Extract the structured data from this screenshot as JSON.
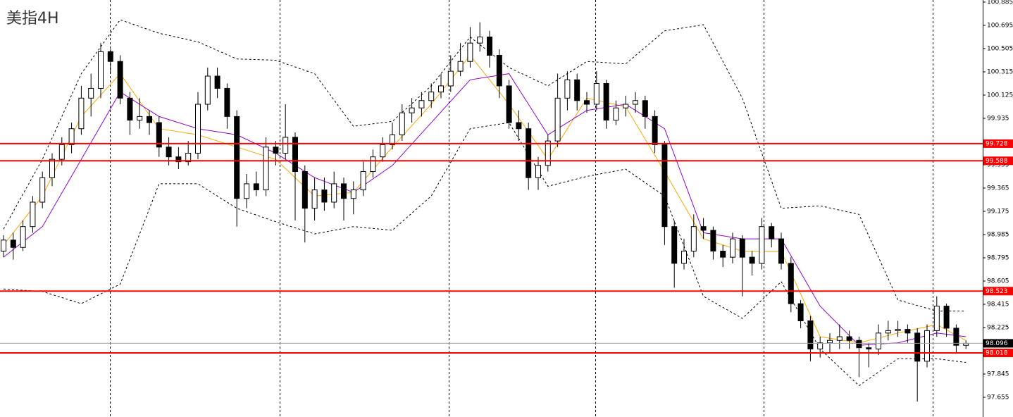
{
  "chart_data": {
    "type": "candlestick",
    "title": "美指4H",
    "ylim": [
      97.494,
      100.902
    ],
    "yticks": [
      100.885,
      100.695,
      100.505,
      100.315,
      100.125,
      99.935,
      99.555,
      99.365,
      99.175,
      98.985,
      98.795,
      98.605,
      98.415,
      98.225,
      97.845,
      97.655
    ],
    "grid": false,
    "up_color": "#ffffff",
    "down_color": "#000000",
    "ohlc": [
      [
        98.85,
        98.98,
        98.8,
        98.94
      ],
      [
        98.94,
        99.0,
        98.78,
        98.88
      ],
      [
        98.88,
        99.1,
        98.85,
        99.05
      ],
      [
        99.05,
        99.3,
        99.0,
        99.25
      ],
      [
        99.25,
        99.5,
        99.2,
        99.45
      ],
      [
        99.45,
        99.65,
        99.38,
        99.6
      ],
      [
        99.6,
        99.78,
        99.55,
        99.72
      ],
      [
        99.72,
        99.9,
        99.65,
        99.85
      ],
      [
        99.85,
        100.2,
        99.8,
        100.1
      ],
      [
        100.1,
        100.3,
        99.95,
        100.18
      ],
      [
        100.18,
        100.55,
        100.1,
        100.48
      ],
      [
        100.48,
        100.5,
        100.3,
        100.4
      ],
      [
        100.4,
        100.45,
        100.05,
        100.1
      ],
      [
        100.1,
        100.15,
        99.8,
        99.92
      ],
      [
        99.92,
        100.1,
        99.85,
        99.95
      ],
      [
        99.95,
        100.0,
        99.8,
        99.9
      ],
      [
        99.9,
        99.95,
        99.62,
        99.7
      ],
      [
        99.7,
        99.78,
        99.55,
        99.62
      ],
      [
        99.62,
        99.7,
        99.52,
        99.58
      ],
      [
        99.58,
        99.75,
        99.55,
        99.65
      ],
      [
        99.65,
        100.15,
        99.6,
        100.05
      ],
      [
        100.05,
        100.35,
        100.0,
        100.28
      ],
      [
        100.28,
        100.35,
        100.1,
        100.18
      ],
      [
        100.18,
        100.22,
        99.85,
        99.95
      ],
      [
        99.95,
        100.0,
        99.05,
        99.28
      ],
      [
        99.28,
        99.48,
        99.2,
        99.4
      ],
      [
        99.4,
        99.5,
        99.3,
        99.35
      ],
      [
        99.35,
        99.78,
        99.3,
        99.7
      ],
      [
        99.7,
        99.75,
        99.55,
        99.65
      ],
      [
        99.65,
        100.05,
        99.6,
        99.78
      ],
      [
        99.78,
        99.82,
        99.1,
        99.5
      ],
      [
        99.5,
        99.55,
        98.92,
        99.2
      ],
      [
        99.2,
        99.45,
        99.1,
        99.35
      ],
      [
        99.35,
        99.45,
        99.18,
        99.25
      ],
      [
        99.25,
        99.5,
        99.2,
        99.4
      ],
      [
        99.4,
        99.45,
        99.1,
        99.28
      ],
      [
        99.28,
        99.42,
        99.15,
        99.35
      ],
      [
        99.35,
        99.58,
        99.3,
        99.5
      ],
      [
        99.5,
        99.68,
        99.45,
        99.62
      ],
      [
        99.62,
        99.78,
        99.58,
        99.72
      ],
      [
        99.72,
        99.9,
        99.68,
        99.8
      ],
      [
        99.8,
        100.05,
        99.75,
        99.98
      ],
      [
        99.98,
        100.1,
        99.9,
        100.02
      ],
      [
        100.02,
        100.15,
        99.95,
        100.08
      ],
      [
        100.08,
        100.22,
        100.02,
        100.15
      ],
      [
        100.15,
        100.3,
        100.1,
        100.2
      ],
      [
        100.2,
        100.45,
        100.15,
        100.32
      ],
      [
        100.32,
        100.55,
        100.28,
        100.4
      ],
      [
        100.4,
        100.68,
        100.35,
        100.55
      ],
      [
        100.55,
        100.72,
        100.48,
        100.6
      ],
      [
        100.6,
        100.65,
        100.35,
        100.45
      ],
      [
        100.45,
        100.5,
        100.1,
        100.2
      ],
      [
        100.2,
        100.25,
        99.85,
        99.9
      ],
      [
        99.9,
        100.0,
        99.75,
        99.85
      ],
      [
        99.85,
        99.9,
        99.35,
        99.45
      ],
      [
        99.45,
        99.62,
        99.35,
        99.55
      ],
      [
        99.55,
        99.8,
        99.5,
        99.75
      ],
      [
        99.75,
        100.3,
        99.7,
        100.1
      ],
      [
        100.1,
        100.32,
        100.0,
        100.25
      ],
      [
        100.25,
        100.3,
        100.0,
        100.08
      ],
      [
        100.08,
        100.15,
        99.98,
        100.05
      ],
      [
        100.05,
        100.32,
        100.0,
        100.22
      ],
      [
        100.22,
        100.25,
        99.85,
        99.92
      ],
      [
        99.92,
        100.08,
        99.88,
        100.02
      ],
      [
        100.02,
        100.12,
        99.95,
        100.05
      ],
      [
        100.05,
        100.15,
        99.98,
        100.08
      ],
      [
        100.08,
        100.12,
        99.85,
        99.95
      ],
      [
        99.95,
        100.0,
        99.65,
        99.72
      ],
      [
        99.72,
        99.75,
        98.9,
        99.05
      ],
      [
        99.05,
        99.1,
        98.55,
        98.75
      ],
      [
        98.75,
        98.95,
        98.7,
        98.85
      ],
      [
        98.85,
        99.15,
        98.8,
        99.05
      ],
      [
        99.05,
        99.12,
        98.95,
        99.02
      ],
      [
        99.02,
        99.05,
        98.78,
        98.85
      ],
      [
        98.85,
        98.9,
        98.72,
        98.8
      ],
      [
        98.8,
        99.0,
        98.75,
        98.95
      ],
      [
        98.95,
        98.98,
        98.48,
        98.8
      ],
      [
        98.8,
        98.85,
        98.65,
        98.75
      ],
      [
        98.75,
        99.12,
        98.7,
        99.05
      ],
      [
        99.05,
        99.08,
        98.88,
        98.95
      ],
      [
        98.95,
        99.0,
        98.7,
        98.75
      ],
      [
        98.75,
        98.8,
        98.35,
        98.42
      ],
      [
        98.42,
        98.45,
        98.22,
        98.28
      ],
      [
        98.28,
        98.32,
        97.95,
        98.05
      ],
      [
        98.05,
        98.15,
        97.98,
        98.1
      ],
      [
        98.1,
        98.18,
        98.02,
        98.12
      ],
      [
        98.12,
        98.25,
        98.05,
        98.15
      ],
      [
        98.15,
        98.2,
        98.05,
        98.12
      ],
      [
        98.12,
        98.15,
        97.82,
        98.06
      ],
      [
        98.06,
        98.1,
        97.9,
        98.05
      ],
      [
        98.05,
        98.25,
        98.0,
        98.18
      ],
      [
        98.18,
        98.28,
        98.12,
        98.2
      ],
      [
        98.2,
        98.28,
        98.15,
        98.21
      ],
      [
        98.21,
        98.25,
        98.1,
        98.18
      ],
      [
        98.18,
        98.22,
        97.62,
        97.95
      ],
      [
        97.95,
        98.25,
        97.9,
        98.2
      ],
      [
        98.2,
        98.48,
        98.15,
        98.4
      ],
      [
        98.4,
        98.42,
        98.15,
        98.22
      ],
      [
        98.22,
        98.25,
        98.02,
        98.08
      ],
      [
        98.08,
        98.12,
        98.05,
        98.096
      ]
    ],
    "overlay_x": [
      0,
      4,
      8,
      12,
      16,
      20,
      24,
      28,
      32,
      36,
      40,
      44,
      48,
      52,
      56,
      60,
      64,
      68,
      72,
      76,
      80,
      84,
      88,
      92,
      96,
      99
    ],
    "overlays": [
      {
        "color": "#000000",
        "dashed": true,
        "values": [
          99.03,
          99.6,
          100.3,
          100.74,
          100.63,
          100.56,
          100.42,
          100.41,
          100.3,
          99.87,
          99.91,
          100.2,
          100.6,
          100.35,
          100.2,
          100.4,
          100.38,
          100.65,
          100.7,
          100.1,
          99.2,
          99.22,
          99.15,
          98.45,
          98.36,
          98.36
        ]
      },
      {
        "color": "#000000",
        "dashed": true,
        "values": [
          98.54,
          98.52,
          98.42,
          98.58,
          99.4,
          99.4,
          99.2,
          99.09,
          98.99,
          99.05,
          99.02,
          99.3,
          99.85,
          99.9,
          99.38,
          99.46,
          99.52,
          99.3,
          98.48,
          98.3,
          98.6,
          98.05,
          97.75,
          97.97,
          97.97,
          97.94
        ]
      },
      {
        "color": "#ffa500",
        "dashed": false,
        "values": [
          98.9,
          99.3,
          99.95,
          100.3,
          99.85,
          99.8,
          99.7,
          99.6,
          99.3,
          99.33,
          99.7,
          100.05,
          100.45,
          100.05,
          99.6,
          100.1,
          100.03,
          99.5,
          98.95,
          98.85,
          98.85,
          98.15,
          98.1,
          98.18,
          98.25,
          98.12
        ]
      },
      {
        "color": "#9400d3",
        "dashed": false,
        "values": [
          98.8,
          99.05,
          99.6,
          100.15,
          99.95,
          99.85,
          99.8,
          99.65,
          99.45,
          99.33,
          99.55,
          99.9,
          100.25,
          100.3,
          99.8,
          100.0,
          100.05,
          99.85,
          99.0,
          98.95,
          98.95,
          98.4,
          98.08,
          98.1,
          98.18,
          98.15
        ]
      }
    ],
    "levels": [
      99.728,
      99.588,
      98.523,
      98.018
    ],
    "level_color": "#ff0000",
    "current_price": 98.096
  }
}
